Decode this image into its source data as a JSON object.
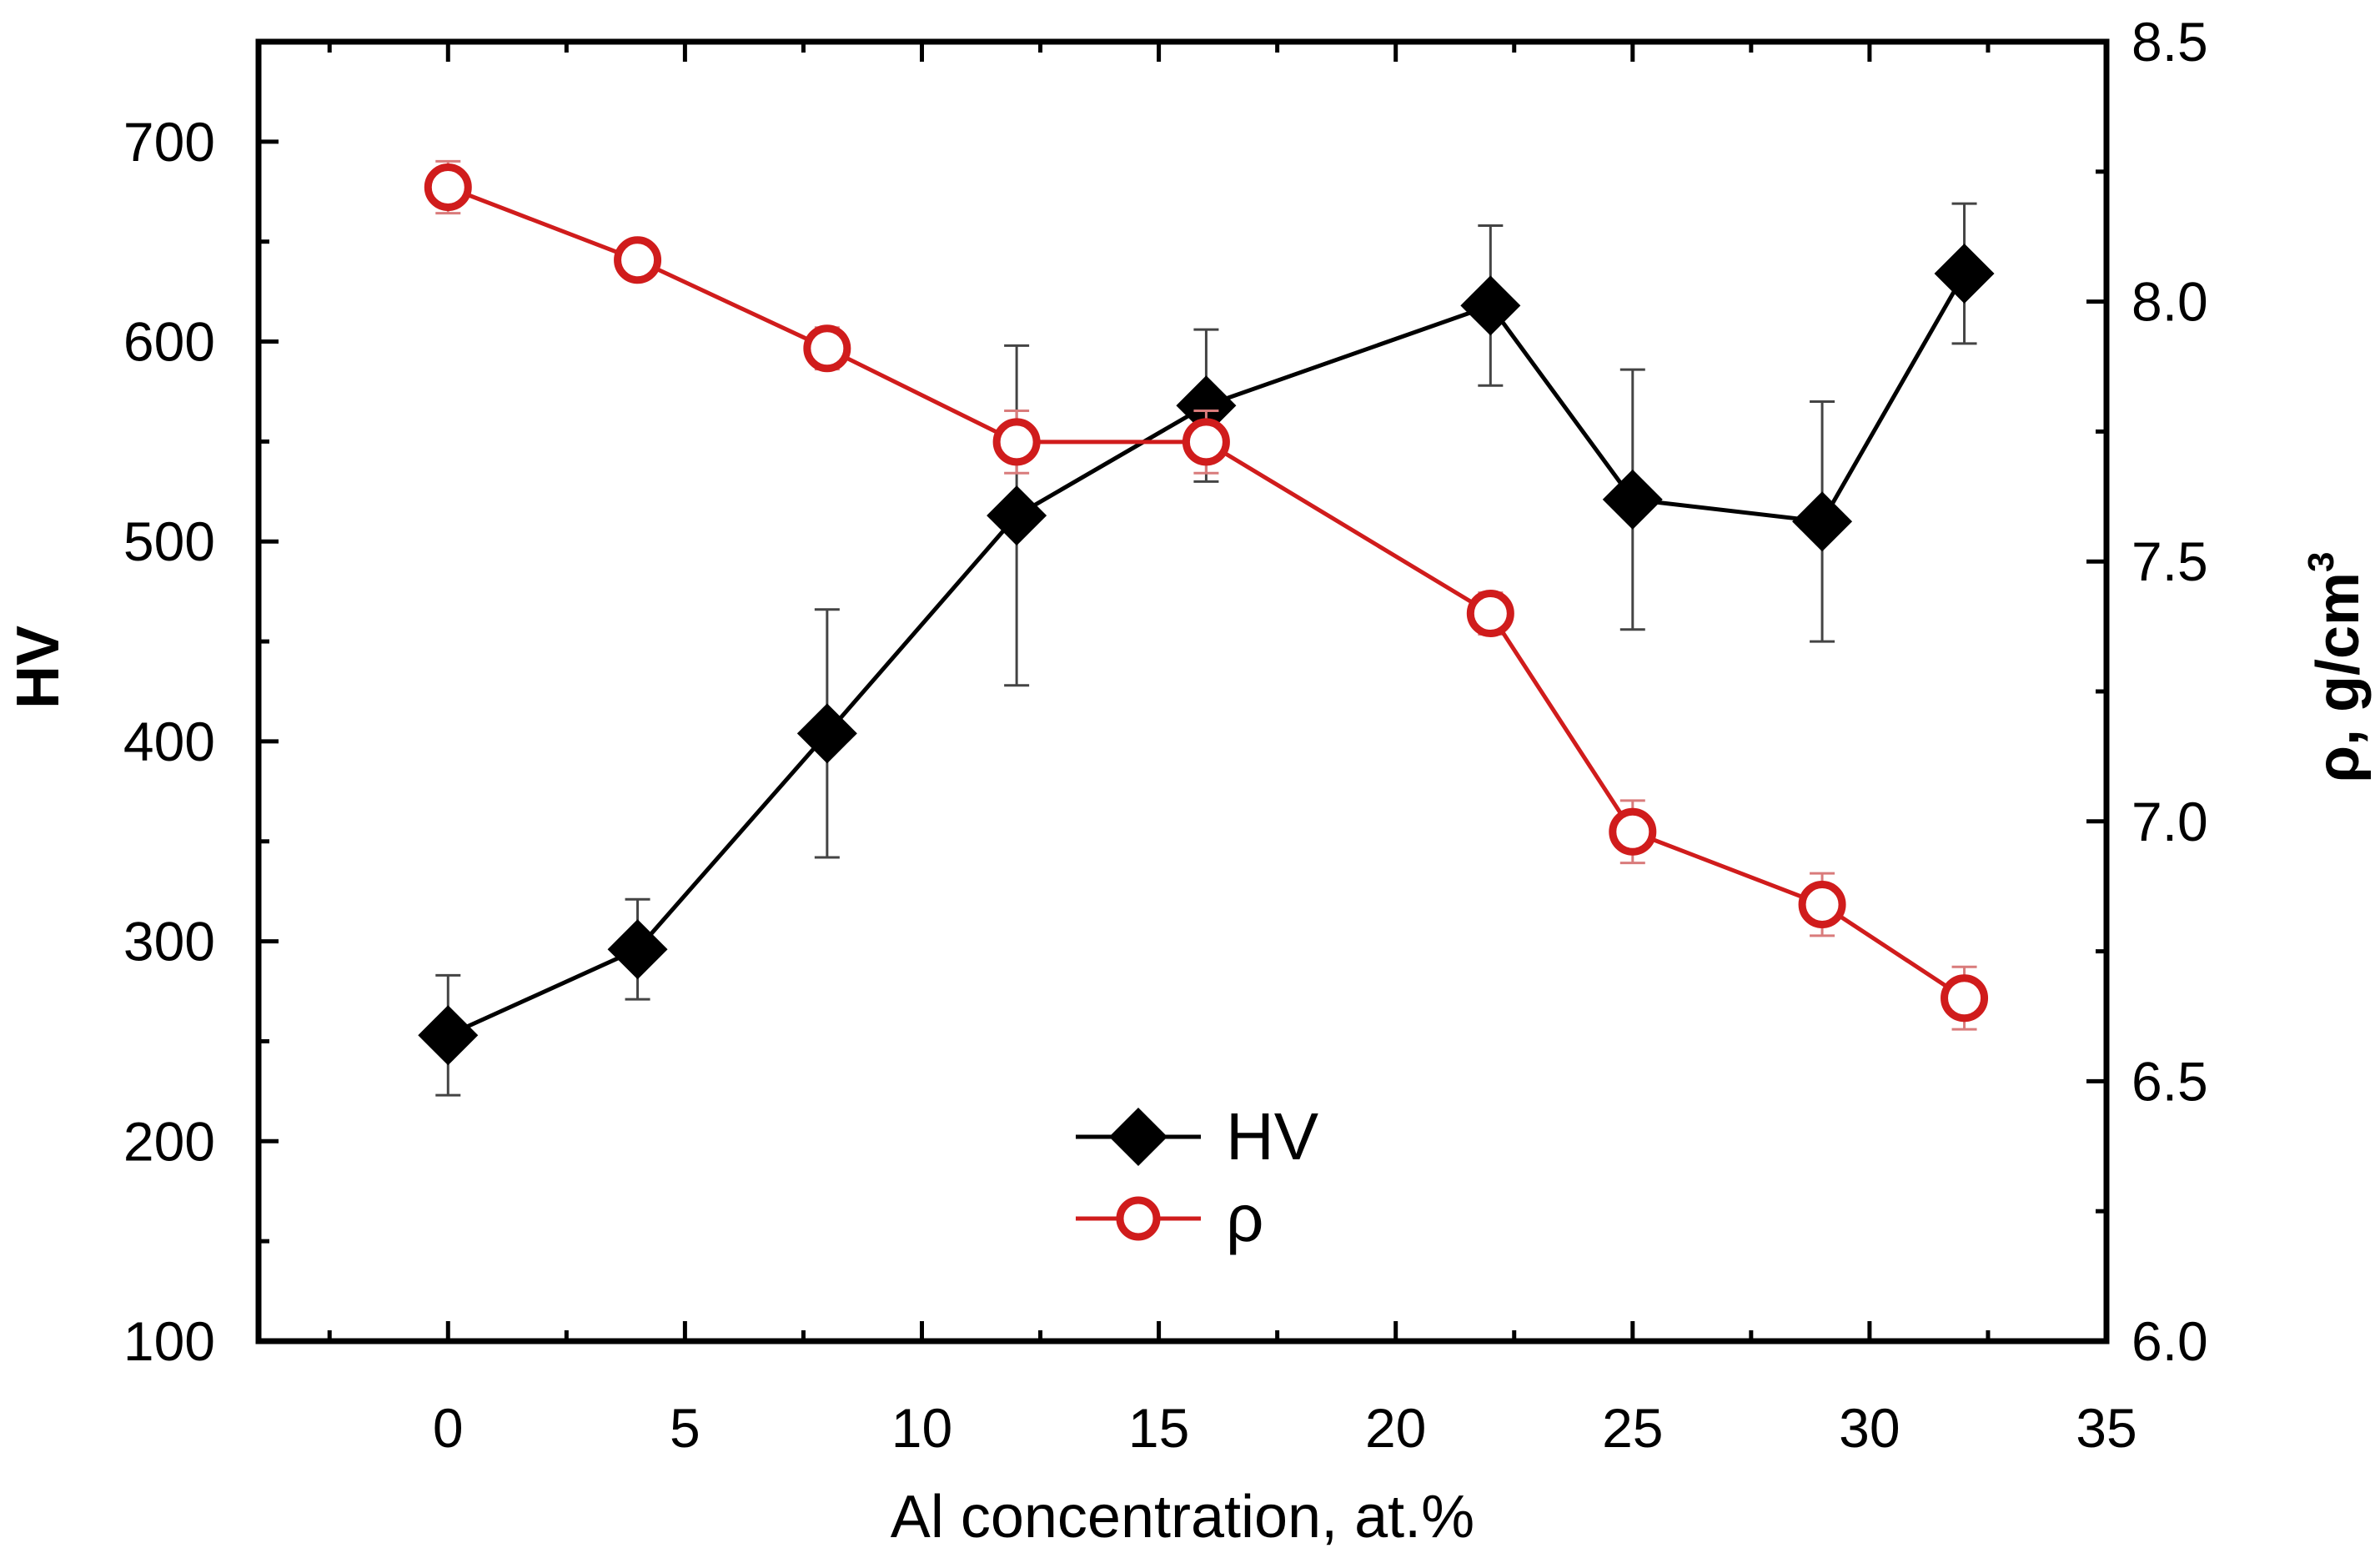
{
  "chart_data": {
    "type": "line",
    "title": "",
    "xlabel": "Al concentration, at.%",
    "ylabel_left": "HV",
    "ylabel_right": {
      "prefix": "ρ, g/cm",
      "superscript": "3"
    },
    "xlim": [
      -4,
      35
    ],
    "ylim_left": [
      100,
      750
    ],
    "ylim_right": [
      6.0,
      8.5
    ],
    "x_ticks": [
      0,
      5,
      10,
      15,
      20,
      25,
      30,
      35
    ],
    "x_tick_labels": [
      "0",
      "5",
      "10",
      "15",
      "20",
      "25",
      "30",
      "35"
    ],
    "y_left_ticks": [
      100,
      200,
      300,
      400,
      500,
      600,
      700
    ],
    "y_left_tick_labels": [
      "100",
      "200",
      "300",
      "400",
      "500",
      "600",
      "700"
    ],
    "y_right_ticks": [
      6.0,
      6.5,
      7.0,
      7.5,
      8.0,
      8.5
    ],
    "y_right_tick_labels": [
      "6.0",
      "6.5",
      "7.0",
      "7.5",
      "8.0",
      "8.5"
    ],
    "grid": false,
    "legend_position": "bottom-center",
    "series": [
      {
        "name": "HV",
        "axis": "left",
        "color": "#000000",
        "marker": "filled-diamond",
        "x": [
          0,
          4,
          8,
          12,
          16,
          22,
          25,
          29,
          32
        ],
        "values": [
          253,
          296,
          404,
          513,
          568,
          618,
          521,
          510,
          634
        ],
        "error": [
          30,
          25,
          62,
          85,
          38,
          40,
          65,
          60,
          35
        ]
      },
      {
        "name": "ρ",
        "axis": "right",
        "color": "#d01c1c",
        "marker": "open-circle",
        "x": [
          0,
          4,
          8,
          12,
          16,
          22,
          25,
          29,
          32
        ],
        "values": [
          8.22,
          8.08,
          7.91,
          7.73,
          7.73,
          7.4,
          6.98,
          6.84,
          6.66
        ],
        "error": [
          0.05,
          0.03,
          0.04,
          0.06,
          0.06,
          0.04,
          0.06,
          0.06,
          0.06
        ]
      }
    ]
  }
}
